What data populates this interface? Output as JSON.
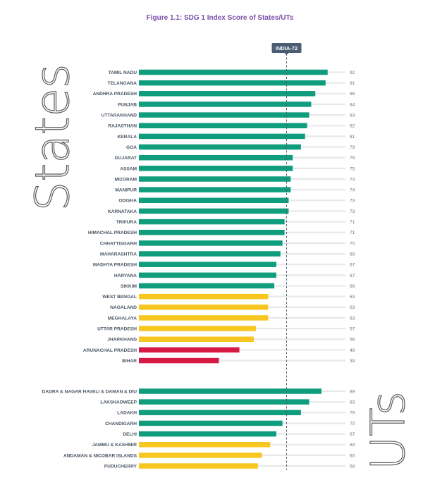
{
  "title": "Figure 1.1: SDG 1 Index Score of States/UTs",
  "reference": {
    "label": "INDIA-72",
    "value": 72
  },
  "colors": {
    "achiever": "#109d7e",
    "performer": "#f8c71f",
    "aspirant": "#d61a45",
    "track": "#e6e8eb",
    "reference": "#4a5d73",
    "title": "#7b4fa8"
  },
  "chart_data": [
    {
      "type": "bar",
      "group_label": "States",
      "orientation": "horizontal",
      "xlim": [
        0,
        100
      ],
      "categories": [
        "TAMIL NADU",
        "TELANGANA",
        "ANDHRA PRADESH",
        "PUNJAB",
        "UTTARAKHAND",
        "RAJASTHAN",
        "KERALA",
        "GOA",
        "GUJARAT",
        "ASSAM",
        "MIZORAM",
        "MANIPUR",
        "ODISHA",
        "KARNATAKA",
        "TRIPURA",
        "HIMACHAL PRADESH",
        "CHHATTISGARH",
        "MAHARASHTRA",
        "MADHYA PRADESH",
        "HARYANA",
        "SIKKIM",
        "WEST BENGAL",
        "NAGALAND",
        "MEGHALAYA",
        "UTTAR PRADESH",
        "JHARKHAND",
        "ARUNACHAL PRADESH",
        "BIHAR"
      ],
      "values": [
        92,
        91,
        86,
        84,
        83,
        82,
        81,
        79,
        75,
        75,
        74,
        74,
        73,
        73,
        71,
        71,
        70,
        69,
        67,
        67,
        66,
        63,
        63,
        63,
        57,
        56,
        49,
        39
      ],
      "bar_colors": [
        "achiever",
        "achiever",
        "achiever",
        "achiever",
        "achiever",
        "achiever",
        "achiever",
        "achiever",
        "achiever",
        "achiever",
        "achiever",
        "achiever",
        "achiever",
        "achiever",
        "achiever",
        "achiever",
        "achiever",
        "achiever",
        "achiever",
        "achiever",
        "achiever",
        "performer",
        "performer",
        "performer",
        "performer",
        "performer",
        "aspirant",
        "aspirant"
      ]
    },
    {
      "type": "bar",
      "group_label": "UTs",
      "orientation": "horizontal",
      "xlim": [
        0,
        100
      ],
      "categories": [
        "DADRA & NAGAR HAVELI & DAMAN & DIU",
        "LAKSHADWEEP",
        "LADAKH",
        "CHANDIGARH",
        "DELHI",
        "JAMMU & KASHMIR",
        "ANDAMAN & NICOBAR ISLANDS",
        "PUDUCHERRY"
      ],
      "values": [
        89,
        83,
        79,
        70,
        67,
        64,
        60,
        58
      ],
      "bar_colors": [
        "achiever",
        "achiever",
        "achiever",
        "achiever",
        "achiever",
        "performer",
        "performer",
        "performer"
      ]
    }
  ]
}
